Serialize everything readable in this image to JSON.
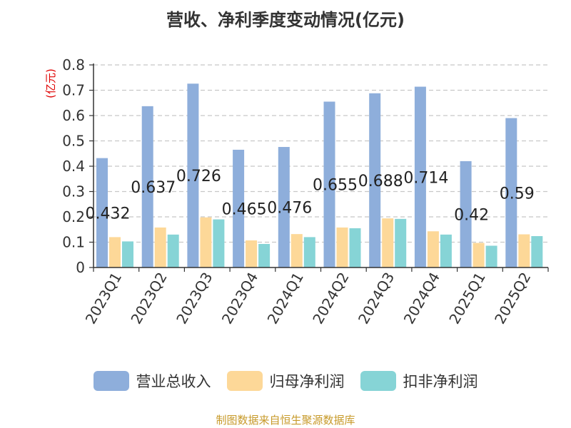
{
  "title": "营收、净利季度变动情况(亿元)",
  "footer": "制图数据来自恒生聚源数据库",
  "chart_data": {
    "type": "bar",
    "ylabel": "(亿元)",
    "ylim": [
      0,
      0.8
    ],
    "yticks": [
      "0",
      "0.1",
      "0.2",
      "0.3",
      "0.4",
      "0.5",
      "0.6",
      "0.7",
      "0.8"
    ],
    "grid": true,
    "legend_position": "bottom",
    "categories": [
      "2023Q1",
      "2023Q2",
      "2023Q3",
      "2023Q4",
      "2024Q1",
      "2024Q2",
      "2024Q3",
      "2024Q4",
      "2025Q1",
      "2025Q2"
    ],
    "series": [
      {
        "name": "营业总收入",
        "color": "#8eaedb",
        "values": [
          0.432,
          0.637,
          0.726,
          0.465,
          0.476,
          0.655,
          0.688,
          0.714,
          0.42,
          0.59
        ],
        "labels": [
          "0.432",
          "0.637",
          "0.726",
          "0.465",
          "0.476",
          "0.655",
          "0.688",
          "0.714",
          "0.42",
          "0.59"
        ]
      },
      {
        "name": "归母净利润",
        "color": "#fdd898",
        "values": [
          0.12,
          0.158,
          0.198,
          0.107,
          0.132,
          0.158,
          0.194,
          0.143,
          0.097,
          0.131
        ]
      },
      {
        "name": "扣非净利润",
        "color": "#86d4d6",
        "values": [
          0.103,
          0.13,
          0.19,
          0.093,
          0.12,
          0.155,
          0.192,
          0.13,
          0.086,
          0.124
        ]
      }
    ]
  }
}
